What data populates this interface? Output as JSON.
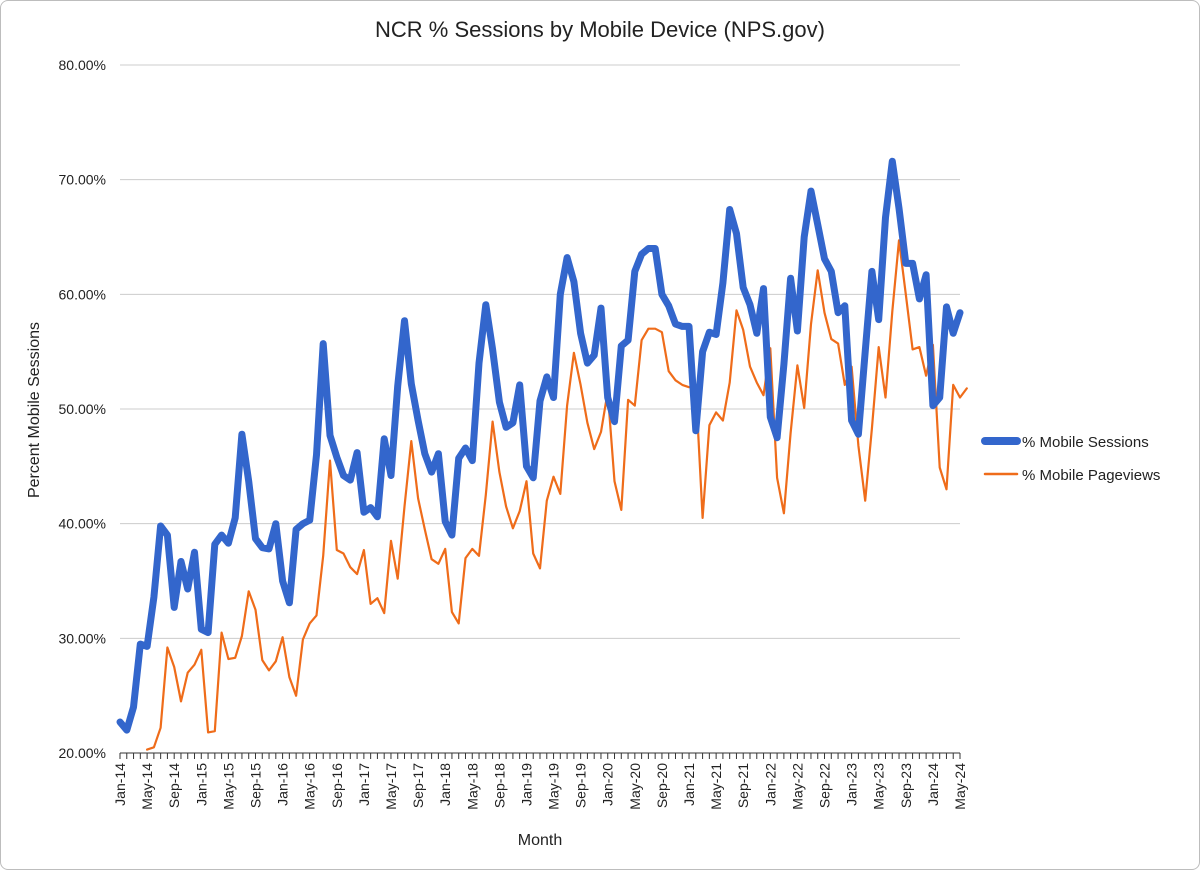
{
  "chart_data": {
    "type": "line",
    "title": "NCR % Sessions by Mobile Device (NPS.gov)",
    "xlabel": "Month",
    "ylabel": "Percent Mobile Sessions",
    "ylim": [
      0.2,
      0.8
    ],
    "yticks": [
      "20.00%",
      "30.00%",
      "40.00%",
      "50.00%",
      "60.00%",
      "70.00%",
      "80.00%"
    ],
    "x_tick_labels": [
      "Jan-14",
      "May-14",
      "Sep-14",
      "Jan-15",
      "May-15",
      "Sep-15",
      "Jan-16",
      "May-16",
      "Sep-16",
      "Jan-17",
      "May-17",
      "Sep-17",
      "Jan-18",
      "May-18",
      "Sep-18",
      "Jan-19",
      "May-19",
      "Sep-19",
      "Jan-20",
      "May-20",
      "Sep-20",
      "Jan-21",
      "May-21",
      "Sep-21",
      "Jan-22",
      "May-22",
      "Sep-22",
      "Jan-23",
      "May-23",
      "Sep-23",
      "Jan-24",
      "May-24"
    ],
    "x_range": [
      "Jan-14",
      "May-24"
    ],
    "grid": true,
    "legend_position": "right",
    "series": [
      {
        "name": "% Mobile Sessions",
        "color": "#3366cc",
        "values": [
          0.227,
          0.22,
          0.24,
          0.295,
          0.293,
          0.336,
          0.398,
          0.39,
          0.327,
          0.367,
          0.343,
          0.375,
          0.308,
          0.305,
          0.382,
          0.39,
          0.383,
          0.405,
          0.478,
          0.437,
          0.387,
          0.379,
          0.378,
          0.4,
          0.35,
          0.331,
          0.395,
          0.4,
          0.403,
          0.46,
          0.557,
          0.477,
          0.458,
          0.442,
          0.438,
          0.462,
          0.41,
          0.414,
          0.406,
          0.474,
          0.442,
          0.52,
          0.577,
          0.522,
          0.49,
          0.461,
          0.445,
          0.461,
          0.402,
          0.39,
          0.457,
          0.466,
          0.455,
          0.54,
          0.591,
          0.552,
          0.506,
          0.484,
          0.488,
          0.521,
          0.45,
          0.44,
          0.507,
          0.528,
          0.51,
          0.6,
          0.632,
          0.611,
          0.566,
          0.54,
          0.547,
          0.588,
          0.51,
          0.489,
          0.555,
          0.56,
          0.62,
          0.635,
          0.64,
          0.64,
          0.6,
          0.59,
          0.574,
          0.572,
          0.572,
          0.481,
          0.55,
          0.567,
          0.565,
          0.61,
          0.674,
          0.653,
          0.606,
          0.591,
          0.566,
          0.605,
          0.493,
          0.475,
          0.539,
          0.614,
          0.568,
          0.65,
          0.69,
          0.661,
          0.631,
          0.62,
          0.584,
          0.59,
          0.49,
          0.478,
          0.55,
          0.62,
          0.578,
          0.667,
          0.716,
          0.675,
          0.627,
          0.627,
          0.596,
          0.617,
          0.503,
          0.51,
          0.589,
          0.566,
          0.584
        ]
      },
      {
        "name": "% Mobile Pageviews",
        "color": "#ef6c1a",
        "values": [
          null,
          null,
          null,
          null,
          0.203,
          0.205,
          0.222,
          0.292,
          0.275,
          0.245,
          0.27,
          0.277,
          0.29,
          0.218,
          0.219,
          0.305,
          0.282,
          0.283,
          0.302,
          0.341,
          0.325,
          0.281,
          0.272,
          0.28,
          0.301,
          0.266,
          0.25,
          0.299,
          0.313,
          0.32,
          0.372,
          0.455,
          0.377,
          0.374,
          0.362,
          0.356,
          0.377,
          0.33,
          0.335,
          0.322,
          0.385,
          0.352,
          0.415,
          0.472,
          0.422,
          0.395,
          0.369,
          0.365,
          0.378,
          0.323,
          0.313,
          0.37,
          0.378,
          0.372,
          0.425,
          0.489,
          0.445,
          0.415,
          0.396,
          0.411,
          0.437,
          0.374,
          0.361,
          0.42,
          0.441,
          0.426,
          0.503,
          0.549,
          0.521,
          0.488,
          0.465,
          0.48,
          0.515,
          0.437,
          0.412,
          0.508,
          0.503,
          0.56,
          0.57,
          0.57,
          0.567,
          0.533,
          0.525,
          0.521,
          0.519,
          0.519,
          0.405,
          0.486,
          0.497,
          0.49,
          0.523,
          0.586,
          0.569,
          0.537,
          0.523,
          0.512,
          0.553,
          0.44,
          0.409,
          0.479,
          0.538,
          0.501,
          0.574,
          0.621,
          0.584,
          0.561,
          0.557,
          0.521,
          0.537,
          0.468,
          0.42,
          0.483,
          0.554,
          0.51,
          0.585,
          0.647,
          0.6,
          0.552,
          0.554,
          0.529,
          0.556,
          0.449,
          0.43,
          0.521,
          0.51,
          0.518
        ]
      }
    ]
  }
}
